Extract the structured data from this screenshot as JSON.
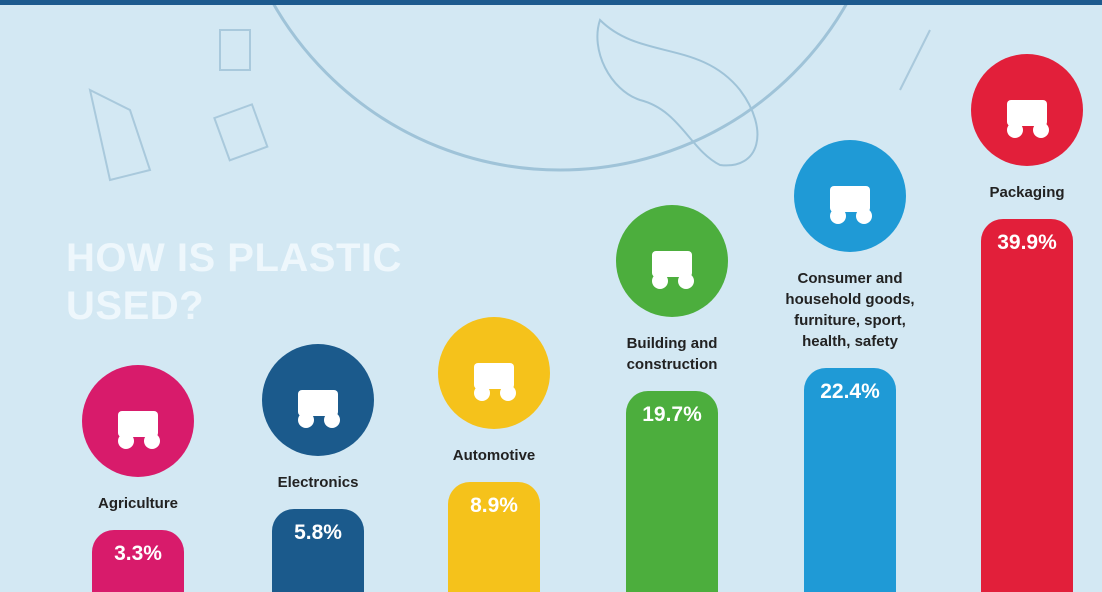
{
  "chart_data": {
    "type": "bar",
    "title": "HOW IS PLASTIC USED?",
    "categories": [
      "Agriculture",
      "Electronics",
      "Automotive",
      "Building and construction",
      "Consumer and household goods, furniture, sport, health, safety",
      "Packaging"
    ],
    "values": [
      3.3,
      5.8,
      8.9,
      19.7,
      22.4,
      39.9
    ],
    "value_labels": [
      "3.3%",
      "5.8%",
      "8.9%",
      "19.7%",
      "22.4%",
      "39.9%"
    ],
    "colors": [
      "#d81b6b",
      "#1b5a8c",
      "#f5c21b",
      "#4cae3d",
      "#1f9ad6",
      "#e21f3a"
    ]
  }
}
